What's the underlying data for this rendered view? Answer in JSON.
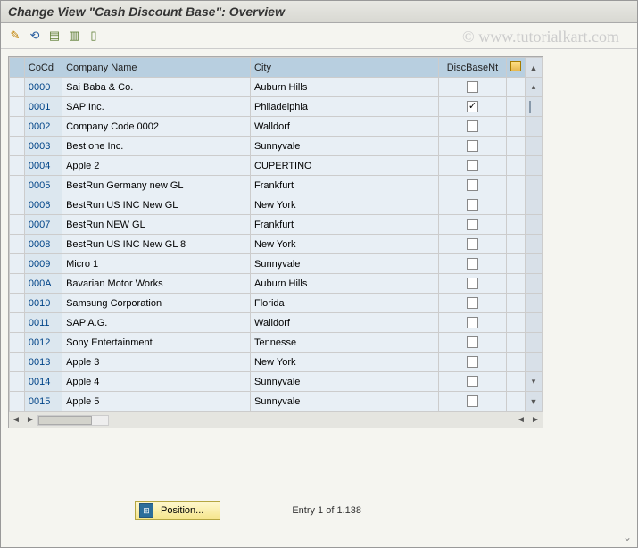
{
  "window": {
    "title": "Change View \"Cash Discount Base\": Overview"
  },
  "watermark": "© www.tutorialkart.com",
  "toolbar": {
    "icons": [
      {
        "name": "edit-icon",
        "glyph": "✎",
        "color": "#c08000"
      },
      {
        "name": "undo-icon",
        "glyph": "⟲",
        "color": "#2a5fa0"
      },
      {
        "name": "select-all-icon",
        "glyph": "▤",
        "color": "#5a7a30"
      },
      {
        "name": "deselect-icon",
        "glyph": "▥",
        "color": "#5a7a30"
      },
      {
        "name": "delete-icon",
        "glyph": "▯",
        "color": "#5a7a30"
      }
    ]
  },
  "grid": {
    "columns": {
      "cocd": "CoCd",
      "company": "Company Name",
      "city": "City",
      "disc": "DiscBaseNt"
    },
    "rows": [
      {
        "cocd": "0000",
        "company": "Sai Baba & Co.",
        "city": "Auburn Hills",
        "disc": false
      },
      {
        "cocd": "0001",
        "company": "SAP Inc.",
        "city": "Philadelphia",
        "disc": true
      },
      {
        "cocd": "0002",
        "company": "Company Code 0002",
        "city": "Walldorf",
        "disc": false
      },
      {
        "cocd": "0003",
        "company": "Best one Inc.",
        "city": "Sunnyvale",
        "disc": false
      },
      {
        "cocd": "0004",
        "company": "Apple 2",
        "city": "CUPERTINO",
        "disc": false
      },
      {
        "cocd": "0005",
        "company": "BestRun Germany new GL",
        "city": "Frankfurt",
        "disc": false
      },
      {
        "cocd": "0006",
        "company": "BestRun US INC New GL",
        "city": "New York",
        "disc": false
      },
      {
        "cocd": "0007",
        "company": "BestRun NEW GL",
        "city": "Frankfurt",
        "disc": false
      },
      {
        "cocd": "0008",
        "company": "BestRun US INC New GL 8",
        "city": "New York",
        "disc": false
      },
      {
        "cocd": "0009",
        "company": "Micro 1",
        "city": "Sunnyvale",
        "disc": false
      },
      {
        "cocd": "000A",
        "company": "Bavarian Motor Works",
        "city": "Auburn Hills",
        "disc": false
      },
      {
        "cocd": "0010",
        "company": "Samsung Corporation",
        "city": "Florida",
        "disc": false
      },
      {
        "cocd": "0011",
        "company": "SAP A.G.",
        "city": "Walldorf",
        "disc": false
      },
      {
        "cocd": "0012",
        "company": "Sony Entertainment",
        "city": "Tennesse",
        "disc": false
      },
      {
        "cocd": "0013",
        "company": "Apple 3",
        "city": "New York",
        "disc": false
      },
      {
        "cocd": "0014",
        "company": "Apple 4",
        "city": "Sunnyvale",
        "disc": false
      },
      {
        "cocd": "0015",
        "company": "Apple 5",
        "city": "Sunnyvale",
        "disc": false
      }
    ]
  },
  "position_button": {
    "label": "Position..."
  },
  "status": {
    "text": "Entry 1 of 1.138"
  },
  "colors": {
    "header_bg": "#b8cfe0",
    "cell_bg": "#e8eff5",
    "cocd_bg": "#dce7ef",
    "accent": "#004488"
  }
}
